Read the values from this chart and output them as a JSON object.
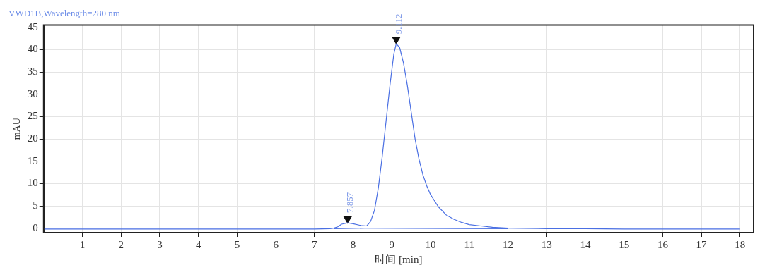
{
  "chart_data": {
    "type": "line",
    "title": "VWD1B,Wavelength=280 nm",
    "xlabel": "时间 [min]",
    "ylabel": "mAU",
    "xlim": [
      0,
      18.35
    ],
    "ylim": [
      -1,
      45.5
    ],
    "xticks": [
      1,
      2,
      3,
      4,
      5,
      6,
      7,
      8,
      9,
      10,
      11,
      12,
      13,
      14,
      15,
      16,
      17,
      18
    ],
    "yticks": [
      0,
      5,
      10,
      15,
      20,
      25,
      30,
      35,
      40,
      45
    ],
    "grid": true,
    "legend": false,
    "marker": "none",
    "line_style": "solid",
    "series": [
      {
        "color": "#4a6fe3",
        "x": [
          0,
          2,
          4,
          6,
          7,
          7.4,
          7.5,
          7.6,
          7.7,
          7.857,
          8.0,
          8.2,
          8.35,
          8.45,
          8.55,
          8.65,
          8.75,
          8.85,
          8.95,
          9.05,
          9.112,
          9.2,
          9.3,
          9.4,
          9.5,
          9.6,
          9.7,
          9.8,
          9.9,
          10.0,
          10.2,
          10.4,
          10.6,
          10.8,
          11.0,
          11.3,
          11.6,
          12.0,
          13.0,
          14.0,
          15.0,
          16.0,
          17.0,
          18.0
        ],
        "values": [
          -0.2,
          -0.2,
          -0.2,
          -0.2,
          -0.2,
          -0.1,
          0.0,
          0.3,
          0.9,
          1.2,
          1.0,
          0.6,
          0.5,
          1.5,
          4,
          9,
          16,
          24,
          32,
          39,
          41.3,
          40.5,
          37,
          32,
          26,
          20,
          15.5,
          12,
          9.5,
          7.5,
          4.8,
          3,
          2,
          1.3,
          0.8,
          0.5,
          0.2,
          0,
          -0.1,
          -0.1,
          -0.2,
          -0.2,
          -0.2,
          -0.2
        ]
      },
      {
        "color": "#4a6fe3",
        "x": [
          7.5,
          8.3,
          12.0
        ],
        "values": [
          -0.1,
          0.0,
          -0.1
        ]
      },
      {
        "type": "scatter",
        "marker": "triangle",
        "color": "#111111",
        "x": [
          7.857,
          9.112
        ],
        "values": [
          2.1,
          42.3
        ]
      }
    ],
    "annotations": [
      {
        "text": "7.857",
        "x": 7.857,
        "y": 1.2
      },
      {
        "text": "9.112",
        "x": 9.112,
        "y": 41.3
      }
    ]
  }
}
